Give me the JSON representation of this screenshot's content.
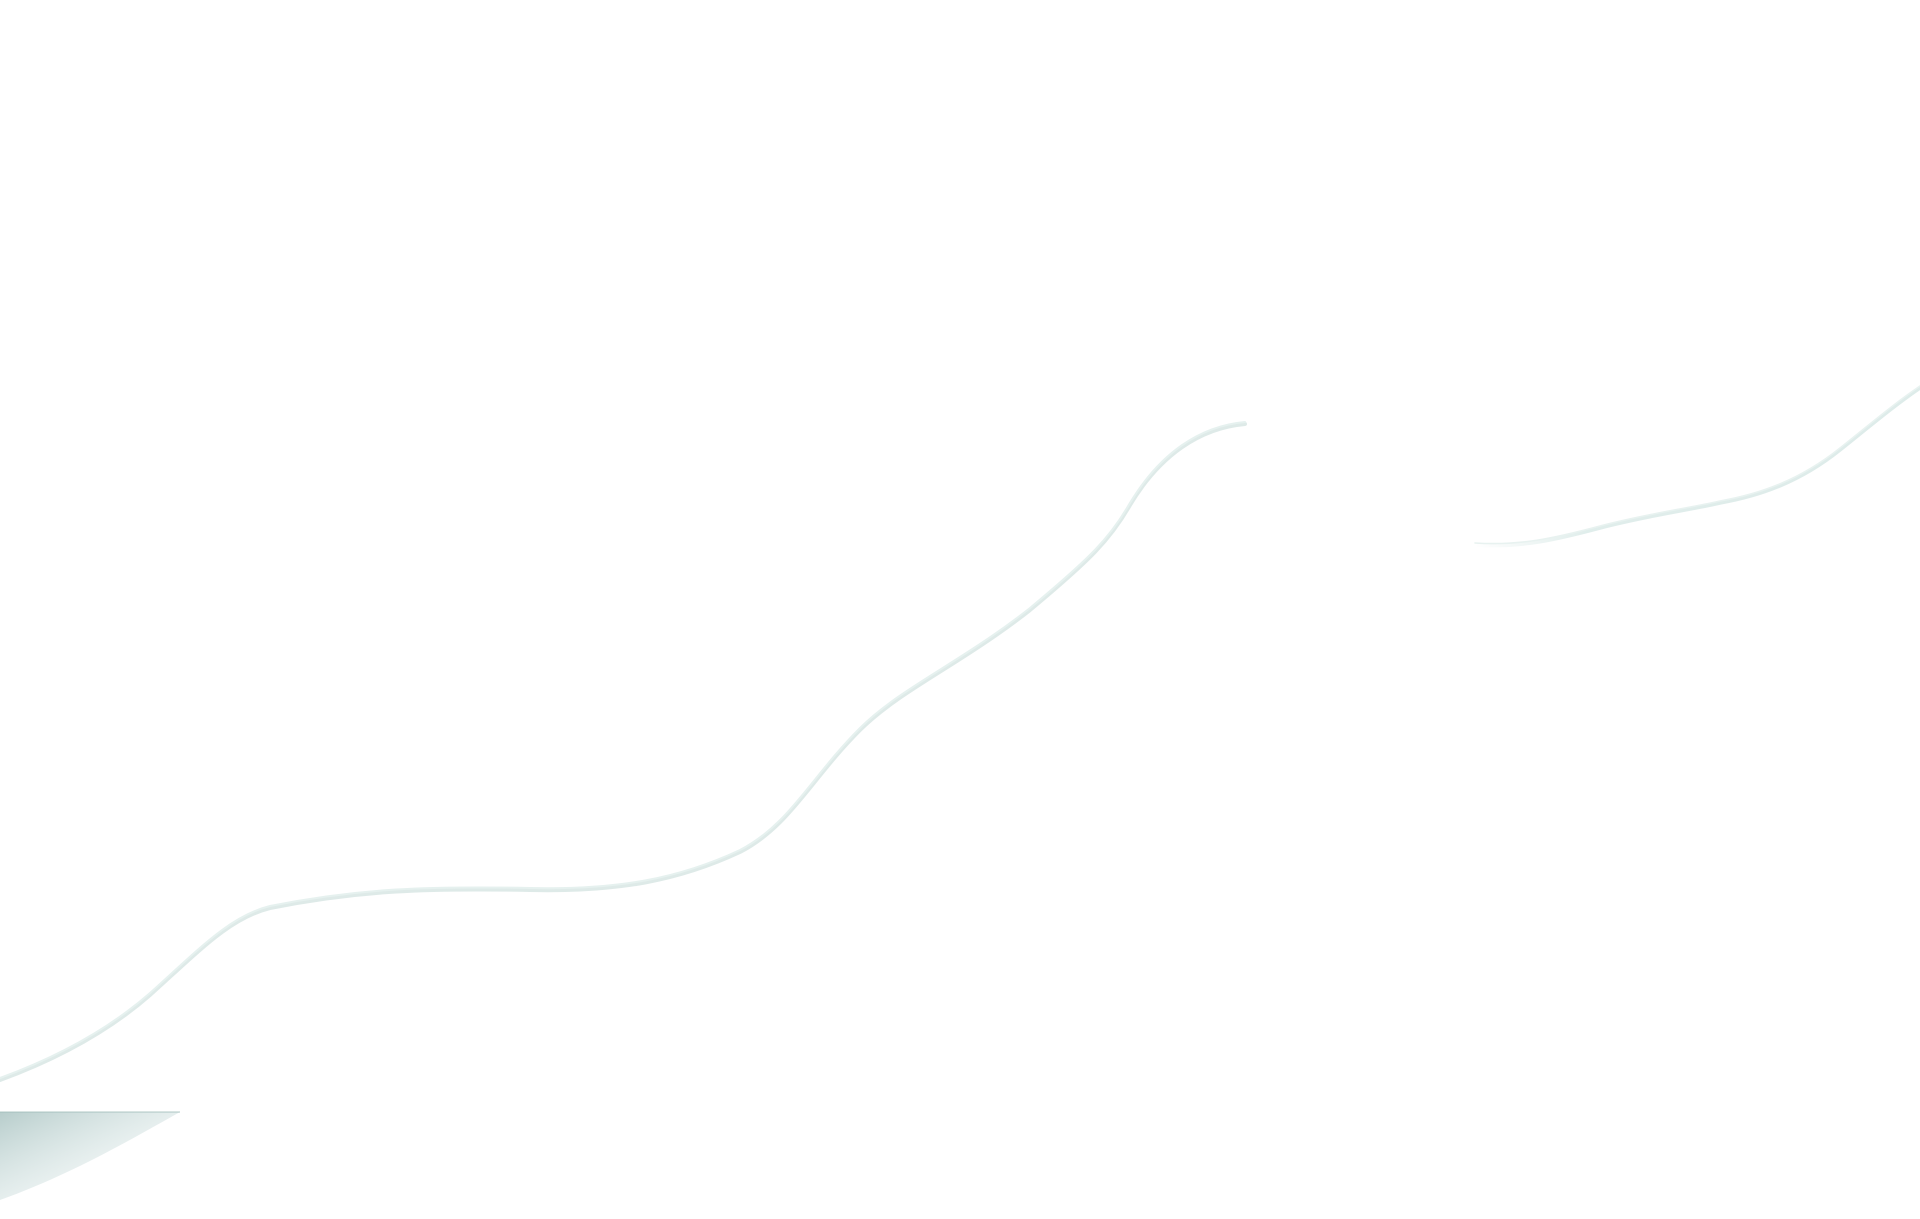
{
  "background": {
    "color": "#ffffff",
    "line_color": "#d3e6e3",
    "line_shadow_color": "#c2d8d5",
    "fade_color": "#a9c4c2"
  }
}
